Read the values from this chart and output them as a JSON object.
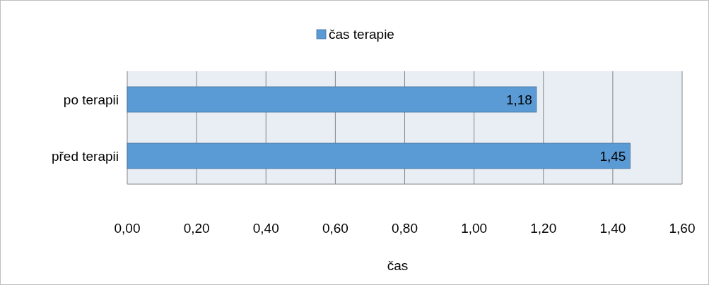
{
  "chart_data": {
    "type": "bar",
    "orientation": "horizontal",
    "categories": [
      "po terapii",
      "před terapii"
    ],
    "series": [
      {
        "name": "čas terapie",
        "color": "#5b9bd5",
        "values": [
          1.18,
          1.45
        ],
        "value_labels": [
          "1,18",
          "1,45"
        ]
      }
    ],
    "xlabel": "čas",
    "xlim": [
      0,
      1.6
    ],
    "xticks": [
      {
        "value": 0,
        "label": "0,00"
      },
      {
        "value": 0.2,
        "label": "0,20"
      },
      {
        "value": 0.4,
        "label": "0,40"
      },
      {
        "value": 0.6,
        "label": "0,60"
      },
      {
        "value": 0.8,
        "label": "0,80"
      },
      {
        "value": 1,
        "label": "1,00"
      },
      {
        "value": 1.2,
        "label": "1,20"
      },
      {
        "value": 1.4,
        "label": "1,40"
      },
      {
        "value": 1.6,
        "label": "1,60"
      }
    ],
    "grid": "x",
    "legend": "top"
  }
}
